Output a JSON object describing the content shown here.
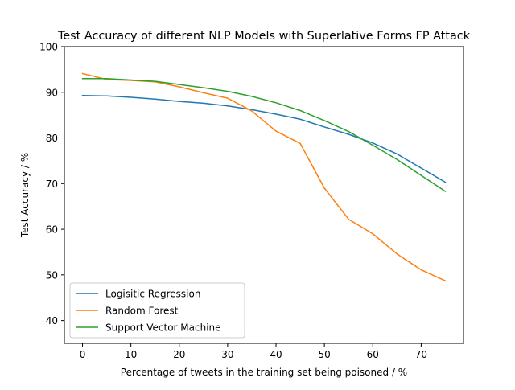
{
  "chart_data": {
    "type": "line",
    "title": "Test Accuracy of different NLP Models with Superlative Forms FP Attack",
    "xlabel": "Percentage of tweets in the training set being poisoned / %",
    "ylabel": "Test Accuracy / %",
    "xlim": [
      -3.75,
      78.75
    ],
    "ylim": [
      35,
      100
    ],
    "xticks": [
      0,
      10,
      20,
      30,
      40,
      50,
      60,
      70
    ],
    "yticks": [
      40,
      50,
      60,
      70,
      80,
      90,
      100
    ],
    "grid": false,
    "legend_position": "lower-left",
    "x": [
      0,
      5,
      10,
      15,
      20,
      25,
      30,
      35,
      40,
      45,
      50,
      55,
      60,
      65,
      70,
      75
    ],
    "series": [
      {
        "name": "Logisitic Regression",
        "color": "#1f77b4",
        "values": [
          89.3,
          89.2,
          88.9,
          88.5,
          88.0,
          87.6,
          87.0,
          86.2,
          85.2,
          84.1,
          82.4,
          80.8,
          78.9,
          76.5,
          73.4,
          70.3
        ]
      },
      {
        "name": "Random Forest",
        "color": "#ff7f0e",
        "values": [
          94.1,
          92.8,
          92.6,
          92.3,
          91.2,
          89.9,
          88.7,
          85.9,
          81.5,
          78.8,
          69.0,
          62.2,
          59.0,
          54.6,
          51.1,
          48.7
        ]
      },
      {
        "name": "Support Vector Machine",
        "color": "#2ca02c",
        "values": [
          93.0,
          93.0,
          92.7,
          92.4,
          91.7,
          91.0,
          90.2,
          89.1,
          87.7,
          86.0,
          83.8,
          81.4,
          78.4,
          75.3,
          71.8,
          68.3
        ]
      }
    ]
  }
}
